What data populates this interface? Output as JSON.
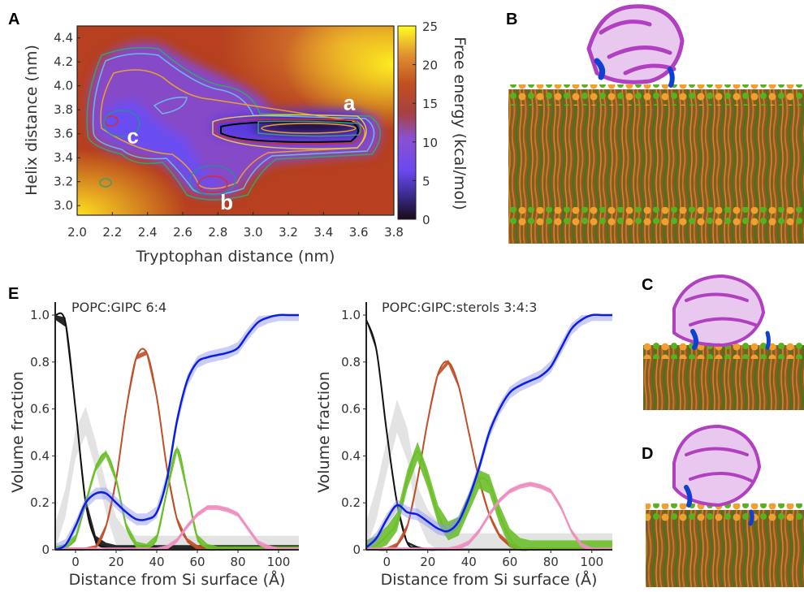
{
  "panels": {
    "A": "A",
    "B": "B",
    "C": "C",
    "D": "D",
    "E": "E"
  },
  "chart_data": [
    {
      "type": "heatmap",
      "panel": "A",
      "title": "",
      "xlabel": "Tryptophan distance (nm)",
      "ylabel": "Helix distance (nm)",
      "xlim": [
        2.0,
        3.8
      ],
      "ylim": [
        2.92,
        4.5
      ],
      "xticks": [
        "2.0",
        "2.2",
        "2.4",
        "2.6",
        "2.8",
        "3.0",
        "3.2",
        "3.4",
        "3.6",
        "3.8"
      ],
      "yticks": [
        "3.0",
        "3.2",
        "3.4",
        "3.6",
        "3.8",
        "4.0",
        "4.2",
        "4.4"
      ],
      "colorbar": {
        "label": "Free energy (kcal/mol)",
        "range": [
          0,
          25
        ],
        "ticks": [
          "0",
          "5",
          "10",
          "15",
          "20",
          "25"
        ],
        "colors": [
          "#1a0a1a",
          "#6a40e0",
          "#8a50d0",
          "#b04020",
          "#e08020",
          "#ffff20"
        ]
      },
      "annotations": [
        {
          "text": "a",
          "x": 3.55,
          "y": 3.86
        },
        {
          "text": "b",
          "x": 2.85,
          "y": 3.03
        },
        {
          "text": "c",
          "x": 2.32,
          "y": 3.58
        }
      ],
      "minima": [
        {
          "x": 3.3,
          "y": 3.62,
          "energy": 0
        },
        {
          "x": 2.75,
          "y": 3.18,
          "energy": 5
        },
        {
          "x": 2.22,
          "y": 3.7,
          "energy": 5
        }
      ]
    },
    {
      "type": "line",
      "panel": "E",
      "title": "POPC:GIPC 6:4",
      "xlabel": "Distance from Si surface (Å)",
      "ylabel": "Volume fraction",
      "xlim": [
        -10,
        110
      ],
      "ylim": [
        0,
        1.05
      ],
      "xticks": [
        "0",
        "20",
        "40",
        "60",
        "80",
        "100"
      ],
      "yticks": [
        "0",
        "0.2",
        "0.4",
        "0.6",
        "0.8",
        "1.0"
      ],
      "x": [
        -10,
        -5,
        0,
        5,
        10,
        15,
        20,
        25,
        30,
        35,
        40,
        45,
        50,
        55,
        60,
        65,
        70,
        75,
        80,
        85,
        90,
        95,
        100,
        105,
        110
      ],
      "series": [
        {
          "color": "#e0e0e0",
          "band": 0.12,
          "values": [
            0.05,
            0.2,
            0.45,
            0.55,
            0.4,
            0.22,
            0.08,
            0.02,
            0,
            0,
            0,
            0,
            0,
            0,
            0,
            0,
            0,
            0,
            0,
            0,
            0,
            0,
            0,
            0,
            0
          ]
        },
        {
          "color": "#111111",
          "band": 0.04,
          "values": [
            1.0,
            0.97,
            0.6,
            0.2,
            0.04,
            0.01,
            0,
            0,
            0,
            0,
            0,
            0,
            0,
            0,
            0,
            0,
            0,
            0,
            0,
            0,
            0,
            0,
            0,
            0,
            0
          ]
        },
        {
          "color": "#c0502a",
          "band": 0.02,
          "values": [
            0,
            0,
            0,
            0,
            0.01,
            0.1,
            0.3,
            0.6,
            0.82,
            0.84,
            0.65,
            0.35,
            0.13,
            0.04,
            0.01,
            0,
            0,
            0,
            0,
            0,
            0,
            0,
            0,
            0,
            0
          ]
        },
        {
          "color": "#6cbf2a",
          "band": 0.03,
          "values": [
            0,
            0.01,
            0.05,
            0.2,
            0.35,
            0.41,
            0.3,
            0.1,
            0.02,
            0.01,
            0.05,
            0.25,
            0.43,
            0.25,
            0.05,
            0.01,
            0,
            0,
            0,
            0,
            0,
            0,
            0,
            0,
            0
          ]
        },
        {
          "color": "#ee8fbf",
          "band": 0.02,
          "values": [
            0,
            0,
            0,
            0,
            0,
            0,
            0,
            0,
            0,
            0,
            0,
            0.01,
            0.04,
            0.1,
            0.15,
            0.18,
            0.18,
            0.17,
            0.15,
            0.09,
            0.03,
            0.01,
            0,
            0,
            0
          ]
        },
        {
          "color": "#0a1ee6",
          "band": 0.05,
          "values": [
            0,
            0.02,
            0.1,
            0.2,
            0.24,
            0.24,
            0.2,
            0.16,
            0.13,
            0.13,
            0.16,
            0.3,
            0.55,
            0.72,
            0.8,
            0.82,
            0.83,
            0.84,
            0.86,
            0.92,
            0.97,
            0.99,
            1.0,
            1.0,
            1.0
          ]
        }
      ]
    },
    {
      "type": "line",
      "panel": "E",
      "title": "POPC:GIPC:sterols 3:4:3",
      "xlabel": "Distance from Si surface (Å)",
      "ylabel": "Volume fraction",
      "xlim": [
        -10,
        110
      ],
      "ylim": [
        0,
        1.05
      ],
      "xticks": [
        "0",
        "20",
        "40",
        "60",
        "80",
        "100"
      ],
      "yticks": [
        "0",
        "0.2",
        "0.4",
        "0.6",
        "0.8",
        "1.0"
      ],
      "x": [
        -10,
        -5,
        0,
        5,
        10,
        15,
        20,
        25,
        30,
        35,
        40,
        45,
        50,
        55,
        60,
        65,
        70,
        75,
        80,
        85,
        90,
        95,
        100,
        105,
        110
      ],
      "series": [
        {
          "color": "#e0e0e0",
          "band": 0.14,
          "values": [
            0.05,
            0.2,
            0.4,
            0.57,
            0.45,
            0.2,
            0.1,
            0.05,
            0.02,
            0,
            0,
            0,
            0,
            0,
            0,
            0,
            0,
            0,
            0,
            0,
            0,
            0,
            0,
            0,
            0
          ]
        },
        {
          "color": "#111111",
          "band": 0.01,
          "values": [
            0.98,
            0.85,
            0.5,
            0.2,
            0.03,
            0.01,
            0,
            0,
            0,
            0,
            0,
            0,
            0,
            0,
            0,
            0,
            0,
            0,
            0,
            0,
            0,
            0,
            0,
            0,
            0
          ]
        },
        {
          "color": "#c0502a",
          "band": 0.02,
          "values": [
            0,
            0,
            0,
            0.02,
            0.1,
            0.3,
            0.55,
            0.75,
            0.8,
            0.7,
            0.5,
            0.3,
            0.15,
            0.06,
            0.02,
            0,
            0,
            0,
            0,
            0,
            0,
            0,
            0,
            0,
            0
          ]
        },
        {
          "color": "#6cbf2a",
          "band": 0.08,
          "values": [
            0,
            0.02,
            0.06,
            0.12,
            0.3,
            0.42,
            0.3,
            0.15,
            0.08,
            0.1,
            0.2,
            0.3,
            0.28,
            0.15,
            0.05,
            0.01,
            0,
            0,
            0,
            0,
            0,
            0,
            0,
            0,
            0
          ]
        },
        {
          "color": "#ee8fbf",
          "band": 0.02,
          "values": [
            0,
            0,
            0,
            0,
            0,
            0,
            0,
            0,
            0,
            0.01,
            0.03,
            0.08,
            0.15,
            0.21,
            0.25,
            0.27,
            0.28,
            0.27,
            0.25,
            0.18,
            0.08,
            0.02,
            0,
            0,
            0
          ]
        },
        {
          "color": "#0a1ee6",
          "band": 0.05,
          "values": [
            0.01,
            0.05,
            0.13,
            0.19,
            0.16,
            0.15,
            0.12,
            0.09,
            0.08,
            0.12,
            0.22,
            0.35,
            0.5,
            0.6,
            0.67,
            0.7,
            0.72,
            0.74,
            0.78,
            0.86,
            0.94,
            0.98,
            1.0,
            1.0,
            1.0
          ]
        }
      ]
    }
  ]
}
